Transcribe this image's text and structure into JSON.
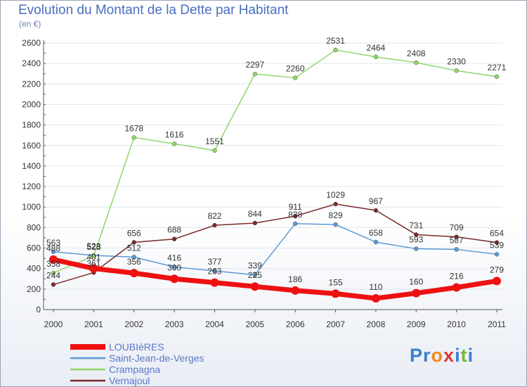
{
  "title": "Evolution du Montant de la Dette par Habitant",
  "unit": "(en €)",
  "logo": {
    "letters": [
      "P",
      "r",
      "o",
      "x",
      "i",
      "t",
      "i"
    ],
    "colors": [
      "#3a7fd0",
      "#3a7fd0",
      "#f08a1c",
      "#e03838",
      "#3a7fd0",
      "#7bb83a",
      "#3a7fd0"
    ]
  },
  "chart_data": {
    "type": "line",
    "title": "Evolution du Montant de la Dette par Habitant",
    "ylabel": "(en €)",
    "x": [
      "2000",
      "2001",
      "2002",
      "2003",
      "2004",
      "2005",
      "2006",
      "2007",
      "2008",
      "2009",
      "2010",
      "2011"
    ],
    "ylim": [
      0,
      2600
    ],
    "yticks": [
      "0",
      "200",
      "400",
      "600",
      "800",
      "1000",
      "1200",
      "1400",
      "1600",
      "1800",
      "2000",
      "2200",
      "2400",
      "2600"
    ],
    "series": [
      {
        "name": "LOUBIèRES",
        "color": "#ee1111",
        "width": 7,
        "dot": 6,
        "values": [
          488,
          401,
          356,
          300,
          263,
          225,
          186,
          155,
          110,
          160,
          216,
          279
        ],
        "labels": [
          "488",
          "401",
          "356",
          "300",
          "263",
          "225",
          "186",
          "155",
          "110",
          "160",
          "216",
          "279"
        ]
      },
      {
        "name": "Saint-Jean-de-Verges",
        "color": "#5a9ad6",
        "width": 1.5,
        "dot": 3,
        "values": [
          563,
          528,
          512,
          416,
          377,
          339,
          838,
          829,
          658,
          593,
          587,
          539
        ],
        "labels": [
          "563",
          "528",
          "512",
          "416",
          "377",
          "339",
          "838",
          "829",
          "658",
          "593",
          "587",
          "539"
        ]
      },
      {
        "name": "Crampagna",
        "color": "#8fd66a",
        "width": 1.5,
        "dot": 3,
        "values": [
          358,
          523,
          1678,
          1616,
          1551,
          2297,
          2260,
          2531,
          2464,
          2408,
          2330,
          2271
        ],
        "labels": [
          "358",
          "523",
          "1678",
          "1616",
          "1551",
          "2297",
          "2260",
          "2531",
          "2464",
          "2408",
          "2330",
          "2271"
        ]
      },
      {
        "name": "Vernajoul",
        "color": "#7a2a2a",
        "width": 1.5,
        "dot": 3,
        "values": [
          244,
          361,
          656,
          688,
          822,
          844,
          911,
          1029,
          967,
          731,
          709,
          654
        ],
        "labels": [
          "244",
          "361",
          "656",
          "688",
          "822",
          "844",
          "911",
          "1029",
          "967",
          "731",
          "709",
          "654"
        ]
      }
    ],
    "legend": [
      "LOUBIèRES",
      "Saint-Jean-de-Verges",
      "Crampagna",
      "Vernajoul"
    ]
  }
}
